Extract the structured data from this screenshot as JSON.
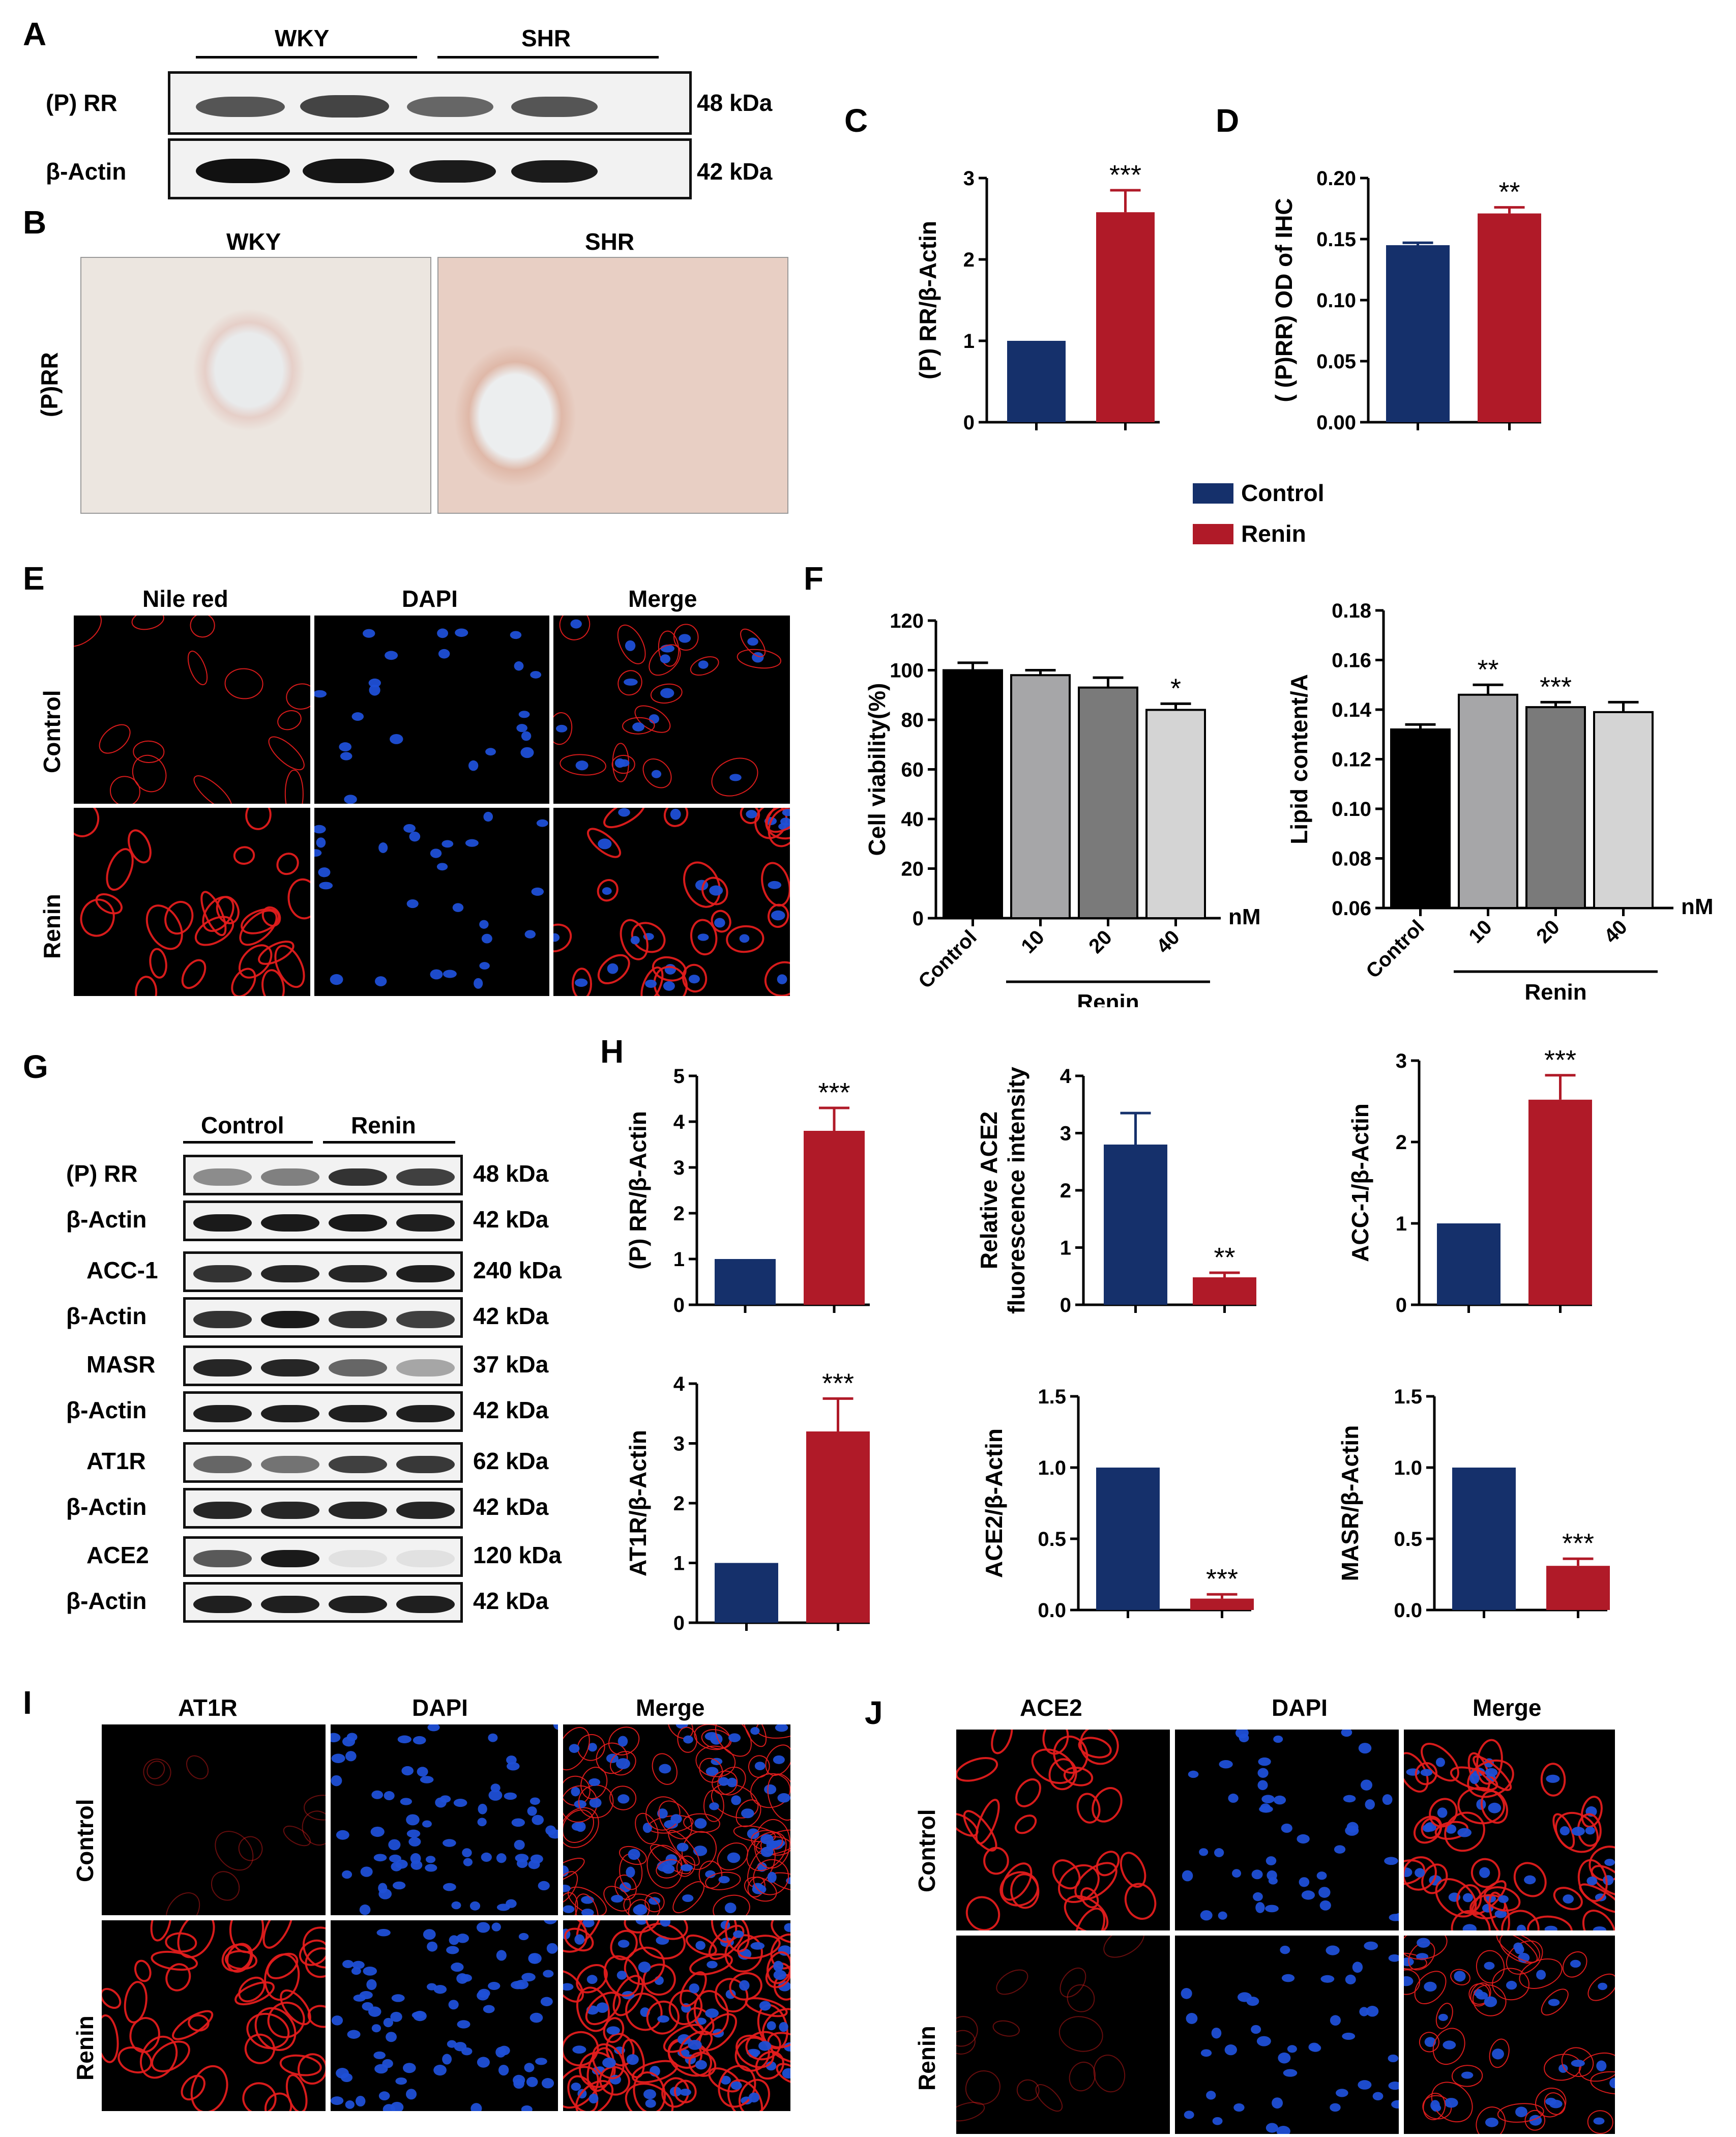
{
  "colors": {
    "control": "#15306b",
    "renin": "#b01a28",
    "black_bar": "#000000",
    "gray1": "#a6a6a8",
    "gray2": "#7a7a7a",
    "gray3": "#d4d4d4",
    "nile_red": "#e31c1c",
    "dapi": "#1f4fd6"
  },
  "panel_letters": [
    "A",
    "B",
    "C",
    "D",
    "E",
    "F",
    "G",
    "H",
    "I",
    "J"
  ],
  "panelA": {
    "groups": [
      "WKY",
      "SHR"
    ],
    "rows": [
      {
        "label": "(P) RR",
        "kda": "48 kDa"
      },
      {
        "label": "β-Actin",
        "kda": "42 kDa"
      }
    ]
  },
  "panelB": {
    "columns": [
      "WKY",
      "SHR"
    ],
    "row_label": "(P)RR"
  },
  "legend": {
    "items": [
      "Control",
      "Renin"
    ]
  },
  "panelE": {
    "columns": [
      "Nile red",
      "DAPI",
      "Merge"
    ],
    "rows": [
      "Control",
      "Renin"
    ]
  },
  "panelG": {
    "groups": [
      "Control",
      "Renin"
    ],
    "rows": [
      {
        "label": "(P) RR",
        "kda": "48 kDa"
      },
      {
        "label": "β-Actin",
        "kda": "42 kDa"
      },
      {
        "label": "ACC-1",
        "kda": "240 kDa"
      },
      {
        "label": "β-Actin",
        "kda": "42 kDa"
      },
      {
        "label": "MASR",
        "kda": "37 kDa"
      },
      {
        "label": "β-Actin",
        "kda": "42 kDa"
      },
      {
        "label": "AT1R",
        "kda": "62 kDa"
      },
      {
        "label": "β-Actin",
        "kda": "42 kDa"
      },
      {
        "label": "ACE2",
        "kda": "120 kDa"
      },
      {
        "label": "β-Actin",
        "kda": "42 kDa"
      }
    ]
  },
  "panelI": {
    "columns": [
      "AT1R",
      "DAPI",
      "Merge"
    ],
    "rows": [
      "Control",
      "Renin"
    ]
  },
  "panelJ": {
    "columns": [
      "ACE2",
      "DAPI",
      "Merge"
    ],
    "rows": [
      "Control",
      "Renin"
    ]
  },
  "chart_data": [
    {
      "id": "C",
      "type": "bar",
      "ylabel": "(P) RR/β-Actin",
      "ylim": [
        0,
        3
      ],
      "ticks": [
        "0",
        "1",
        "2",
        "3"
      ],
      "values": [
        1.0,
        2.58
      ],
      "errors": [
        0,
        0.27
      ],
      "colors": [
        "control",
        "renin"
      ],
      "sig": [
        "",
        "***"
      ]
    },
    {
      "id": "D",
      "type": "bar",
      "ylabel": "( (P)RR) OD of IHC",
      "ylim": [
        0,
        0.2
      ],
      "ticks": [
        "0.00",
        "0.05",
        "0.10",
        "0.15",
        "0.20"
      ],
      "values": [
        0.145,
        0.171
      ],
      "errors": [
        0.002,
        0.005
      ],
      "colors": [
        "control",
        "renin"
      ],
      "sig": [
        "",
        "**"
      ]
    },
    {
      "id": "F1",
      "type": "bar",
      "ylabel": "Cell viability(%)",
      "ylim": [
        0,
        120
      ],
      "ticks": [
        "0",
        "20",
        "40",
        "60",
        "80",
        "100",
        "120"
      ],
      "categories": [
        "Control",
        "10",
        "20",
        "40"
      ],
      "values": [
        100,
        98,
        93,
        84
      ],
      "errors": [
        3,
        2,
        4,
        2.5
      ],
      "colors": [
        "black_bar",
        "gray1",
        "gray2",
        "gray3"
      ],
      "sig": [
        "",
        "",
        "",
        "*"
      ],
      "unit": "nM",
      "group_label": "Renin"
    },
    {
      "id": "F2",
      "type": "bar",
      "ylabel": "Lipid content/A",
      "ylim": [
        0.06,
        0.18
      ],
      "ticks": [
        "0.06",
        "0.08",
        "0.10",
        "0.12",
        "0.14",
        "0.16",
        "0.18"
      ],
      "categories": [
        "Control",
        "10",
        "20",
        "40"
      ],
      "values": [
        0.132,
        0.146,
        0.141,
        0.139
      ],
      "errors": [
        0.002,
        0.004,
        0.002,
        0.004
      ],
      "colors": [
        "black_bar",
        "gray1",
        "gray2",
        "gray3"
      ],
      "sig": [
        "",
        "**",
        "***",
        ""
      ],
      "unit": "nM",
      "group_label": "Renin"
    },
    {
      "id": "H1",
      "type": "bar",
      "ylabel": "(P) RR/β-Actin",
      "ylim": [
        0,
        5
      ],
      "ticks": [
        "0",
        "1",
        "2",
        "3",
        "4",
        "5"
      ],
      "values": [
        1.0,
        3.8
      ],
      "errors": [
        0,
        0.5
      ],
      "colors": [
        "control",
        "renin"
      ],
      "sig": [
        "",
        "***"
      ]
    },
    {
      "id": "H2",
      "type": "bar",
      "ylabel": "Relative ACE2 fluorescence intensity",
      "ylabel2": "fluorescence intensity",
      "ylabel1": "Relative ACE2",
      "ylim": [
        0,
        4
      ],
      "ticks": [
        "0",
        "1",
        "2",
        "3",
        "4"
      ],
      "values": [
        2.8,
        0.48
      ],
      "errors": [
        0.55,
        0.08
      ],
      "colors": [
        "control",
        "renin"
      ],
      "sig": [
        "",
        "**"
      ]
    },
    {
      "id": "H3",
      "type": "bar",
      "ylabel": "ACC-1/β-Actin",
      "ylim": [
        0,
        3
      ],
      "ticks": [
        "0",
        "1",
        "2",
        "3"
      ],
      "values": [
        1.0,
        2.52
      ],
      "errors": [
        0,
        0.3
      ],
      "colors": [
        "control",
        "renin"
      ],
      "sig": [
        "",
        "***"
      ]
    },
    {
      "id": "H4",
      "type": "bar",
      "ylabel": "AT1R/β-Actin",
      "ylim": [
        0,
        4
      ],
      "ticks": [
        "0",
        "1",
        "2",
        "3",
        "4"
      ],
      "values": [
        1.0,
        3.2
      ],
      "errors": [
        0,
        0.55
      ],
      "colors": [
        "control",
        "renin"
      ],
      "sig": [
        "",
        "***"
      ]
    },
    {
      "id": "H5",
      "type": "bar",
      "ylabel": "ACE2/β-Actin",
      "ylim": [
        0,
        1.5
      ],
      "ticks": [
        "0.0",
        "0.5",
        "1.0",
        "1.5"
      ],
      "values": [
        1.0,
        0.08
      ],
      "errors": [
        0,
        0.03
      ],
      "colors": [
        "control",
        "renin"
      ],
      "sig": [
        "",
        "***"
      ]
    },
    {
      "id": "H6",
      "type": "bar",
      "ylabel": "MASR/β-Actin",
      "ylim": [
        0,
        1.5
      ],
      "ticks": [
        "0.0",
        "0.5",
        "1.0",
        "1.5"
      ],
      "values": [
        1.0,
        0.31
      ],
      "errors": [
        0,
        0.05
      ],
      "colors": [
        "control",
        "renin"
      ],
      "sig": [
        "",
        "***"
      ]
    }
  ]
}
